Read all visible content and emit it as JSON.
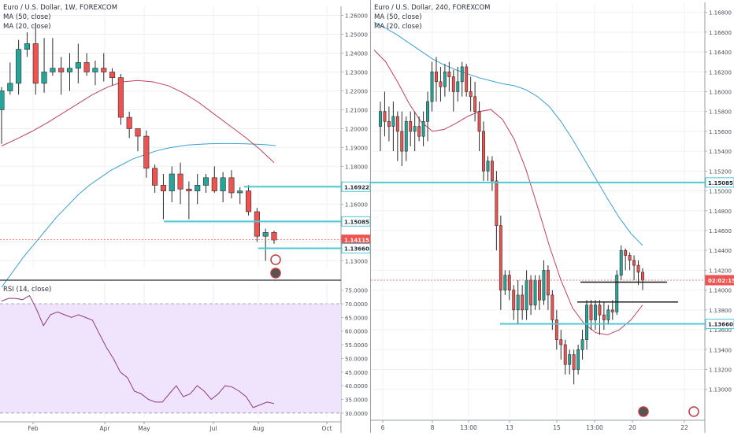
{
  "left_chart": {
    "title": "Euro / U.S. Dollar, 1W, FOREXCOM",
    "ma1_label": "MA (50, close)",
    "ma2_label": "MA (20, close)",
    "rsi_label": "RSI (14, close)"
  },
  "right_chart": {
    "title": "Euro / U.S. Dollar, 240, FOREXCOM",
    "ma1_label": "MA (50, close)",
    "ma2_label": "MA (20, close)"
  },
  "colors": {
    "up": "#26a69a",
    "down": "#ef5350",
    "ma50": "#3aa0d5",
    "ma20": "#c2405a",
    "level": "#4dc8d4",
    "rsi_line": "#8e3a84",
    "rsi_band": "#efe4fb",
    "price_tag": "#ef5350"
  },
  "chart_data": [
    {
      "type": "candlestick",
      "id": "left-weekly",
      "title": "Euro / U.S. Dollar, 1W, FOREXCOM",
      "ylim": [
        1.1264,
        1.2648
      ],
      "y_ticks": [
        "1.26000",
        "1.25000",
        "1.24000",
        "1.23000",
        "1.22000",
        "1.21000",
        "1.20000",
        "1.19000",
        "1.18000",
        "1.17000",
        "1.16000",
        "1.15000",
        "1.14000",
        "1.13000"
      ],
      "x_ticks": [
        "Feb",
        "Apr",
        "May",
        "Jul",
        "Aug",
        "Oct"
      ],
      "price_labels": [
        {
          "text": "1.16922",
          "value": 1.16922,
          "style": "level"
        },
        {
          "text": "1.15085",
          "value": 1.15085,
          "style": "level"
        },
        {
          "text": "1.14115",
          "value": 1.14115,
          "style": "current"
        },
        {
          "text": "1.13660",
          "value": 1.1366,
          "style": "level"
        }
      ],
      "candles": [
        {
          "o": 1.21,
          "h": 1.222,
          "l": 1.192,
          "c": 1.22
        },
        {
          "o": 1.22,
          "h": 1.235,
          "l": 1.218,
          "c": 1.224
        },
        {
          "o": 1.224,
          "h": 1.247,
          "l": 1.218,
          "c": 1.242
        },
        {
          "o": 1.242,
          "h": 1.251,
          "l": 1.238,
          "c": 1.245
        },
        {
          "o": 1.245,
          "h": 1.256,
          "l": 1.218,
          "c": 1.224
        },
        {
          "o": 1.224,
          "h": 1.248,
          "l": 1.219,
          "c": 1.23
        },
        {
          "o": 1.23,
          "h": 1.248,
          "l": 1.228,
          "c": 1.232
        },
        {
          "o": 1.232,
          "h": 1.238,
          "l": 1.218,
          "c": 1.23
        },
        {
          "o": 1.23,
          "h": 1.24,
          "l": 1.22,
          "c": 1.232
        },
        {
          "o": 1.232,
          "h": 1.245,
          "l": 1.224,
          "c": 1.235
        },
        {
          "o": 1.235,
          "h": 1.24,
          "l": 1.228,
          "c": 1.23
        },
        {
          "o": 1.23,
          "h": 1.236,
          "l": 1.223,
          "c": 1.232
        },
        {
          "o": 1.232,
          "h": 1.24,
          "l": 1.225,
          "c": 1.23
        },
        {
          "o": 1.23,
          "h": 1.232,
          "l": 1.223,
          "c": 1.227
        },
        {
          "o": 1.227,
          "h": 1.229,
          "l": 1.202,
          "c": 1.206
        },
        {
          "o": 1.206,
          "h": 1.209,
          "l": 1.195,
          "c": 1.2
        },
        {
          "o": 1.2,
          "h": 1.2,
          "l": 1.188,
          "c": 1.196
        },
        {
          "o": 1.196,
          "h": 1.199,
          "l": 1.174,
          "c": 1.179
        },
        {
          "o": 1.179,
          "h": 1.181,
          "l": 1.166,
          "c": 1.17
        },
        {
          "o": 1.17,
          "h": 1.176,
          "l": 1.152,
          "c": 1.167
        },
        {
          "o": 1.167,
          "h": 1.18,
          "l": 1.161,
          "c": 1.176
        },
        {
          "o": 1.176,
          "h": 1.182,
          "l": 1.16,
          "c": 1.168
        },
        {
          "o": 1.168,
          "h": 1.172,
          "l": 1.152,
          "c": 1.167
        },
        {
          "o": 1.167,
          "h": 1.176,
          "l": 1.16,
          "c": 1.17
        },
        {
          "o": 1.17,
          "h": 1.176,
          "l": 1.166,
          "c": 1.174
        },
        {
          "o": 1.174,
          "h": 1.18,
          "l": 1.166,
          "c": 1.167
        },
        {
          "o": 1.167,
          "h": 1.177,
          "l": 1.161,
          "c": 1.174
        },
        {
          "o": 1.174,
          "h": 1.178,
          "l": 1.163,
          "c": 1.166
        },
        {
          "o": 1.166,
          "h": 1.169,
          "l": 1.16,
          "c": 1.167
        },
        {
          "o": 1.167,
          "h": 1.17,
          "l": 1.154,
          "c": 1.156
        },
        {
          "o": 1.156,
          "h": 1.158,
          "l": 1.14,
          "c": 1.143
        },
        {
          "o": 1.143,
          "h": 1.147,
          "l": 1.13,
          "c": 1.145
        },
        {
          "o": 1.145,
          "h": 1.146,
          "l": 1.139,
          "c": 1.141
        }
      ],
      "ma50": [
        1.116,
        1.124,
        1.132,
        1.139,
        1.146,
        1.153,
        1.159,
        1.165,
        1.17,
        1.174,
        1.178,
        1.181,
        1.184,
        1.186,
        1.188,
        1.1895,
        1.1905,
        1.1913,
        1.1917,
        1.192,
        1.1921,
        1.1921,
        1.192,
        1.1918,
        1.1915,
        1.191
      ],
      "ma20": [
        1.1908,
        1.1945,
        1.1985,
        1.203,
        1.208,
        1.213,
        1.218,
        1.222,
        1.2248,
        1.2255,
        1.2248,
        1.2228,
        1.219,
        1.214,
        1.208,
        1.202,
        1.196,
        1.1895,
        1.182
      ]
    },
    {
      "type": "line",
      "id": "left-rsi",
      "title": "RSI (14, close)",
      "ylim": [
        28.5,
        77.5
      ],
      "y_ticks": [
        "75.0000",
        "70.0000",
        "65.0000",
        "60.0000",
        "55.0000",
        "50.0000",
        "45.0000",
        "40.0000",
        "35.0000",
        "30.0000"
      ],
      "band": [
        30,
        70
      ],
      "values": [
        71,
        72,
        72,
        71.5,
        73,
        68,
        62,
        66,
        67,
        66,
        65,
        66,
        65,
        64,
        59,
        54,
        50,
        45,
        43,
        38,
        37,
        35,
        34,
        34,
        37,
        40,
        36,
        37,
        40,
        38,
        35,
        37,
        40,
        39.5,
        38,
        36,
        32,
        33,
        34,
        33.5
      ]
    },
    {
      "type": "candlestick",
      "id": "right-4h",
      "title": "Euro / U.S. Dollar, 240, FOREXCOM",
      "ylim": [
        1.1272,
        1.169
      ],
      "y_ticks": [
        "1.16800",
        "1.16600",
        "1.16400",
        "1.16200",
        "1.16000",
        "1.15800",
        "1.15600",
        "1.15400",
        "1.15200",
        "1.15000",
        "1.14800",
        "1.14600",
        "1.14400",
        "1.14200",
        "1.14000",
        "1.13800",
        "1.13600",
        "1.13400",
        "1.13200",
        "1.13000"
      ],
      "x_ticks": [
        "6",
        "8",
        "13:00",
        "13",
        "15",
        "13:00",
        "20",
        "22"
      ],
      "price_labels": [
        {
          "text": "1.15085",
          "value": 1.15085,
          "style": "level"
        },
        {
          "text": "02:02:15",
          "value": 1.141,
          "style": "timer"
        },
        {
          "text": "1.13660",
          "value": 1.1366,
          "style": "level"
        }
      ],
      "candles": [
        {
          "o": 1.1565,
          "h": 1.159,
          "l": 1.154,
          "c": 1.158
        },
        {
          "o": 1.158,
          "h": 1.16,
          "l": 1.1555,
          "c": 1.157
        },
        {
          "o": 1.157,
          "h": 1.1585,
          "l": 1.155,
          "c": 1.1565
        },
        {
          "o": 1.1565,
          "h": 1.159,
          "l": 1.154,
          "c": 1.1575
        },
        {
          "o": 1.1575,
          "h": 1.158,
          "l": 1.153,
          "c": 1.156
        },
        {
          "o": 1.156,
          "h": 1.158,
          "l": 1.1525,
          "c": 1.154
        },
        {
          "o": 1.154,
          "h": 1.1575,
          "l": 1.153,
          "c": 1.157
        },
        {
          "o": 1.157,
          "h": 1.158,
          "l": 1.1545,
          "c": 1.156
        },
        {
          "o": 1.156,
          "h": 1.158,
          "l": 1.154,
          "c": 1.1565
        },
        {
          "o": 1.1565,
          "h": 1.1575,
          "l": 1.155,
          "c": 1.1555
        },
        {
          "o": 1.1555,
          "h": 1.158,
          "l": 1.1545,
          "c": 1.157
        },
        {
          "o": 1.157,
          "h": 1.16,
          "l": 1.155,
          "c": 1.159
        },
        {
          "o": 1.159,
          "h": 1.163,
          "l": 1.158,
          "c": 1.162
        },
        {
          "o": 1.162,
          "h": 1.1635,
          "l": 1.159,
          "c": 1.161
        },
        {
          "o": 1.161,
          "h": 1.1625,
          "l": 1.159,
          "c": 1.1605
        },
        {
          "o": 1.1605,
          "h": 1.1628,
          "l": 1.1595,
          "c": 1.162
        },
        {
          "o": 1.162,
          "h": 1.163,
          "l": 1.16,
          "c": 1.1615
        },
        {
          "o": 1.1615,
          "h": 1.1622,
          "l": 1.158,
          "c": 1.16
        },
        {
          "o": 1.16,
          "h": 1.1625,
          "l": 1.159,
          "c": 1.161
        },
        {
          "o": 1.161,
          "h": 1.163,
          "l": 1.1595,
          "c": 1.1625
        },
        {
          "o": 1.1625,
          "h": 1.1628,
          "l": 1.1595,
          "c": 1.16
        },
        {
          "o": 1.16,
          "h": 1.1615,
          "l": 1.158,
          "c": 1.1595
        },
        {
          "o": 1.1595,
          "h": 1.161,
          "l": 1.157,
          "c": 1.158
        },
        {
          "o": 1.158,
          "h": 1.159,
          "l": 1.154,
          "c": 1.156
        },
        {
          "o": 1.156,
          "h": 1.157,
          "l": 1.151,
          "c": 1.152
        },
        {
          "o": 1.152,
          "h": 1.1535,
          "l": 1.151,
          "c": 1.153
        },
        {
          "o": 1.153,
          "h": 1.1535,
          "l": 1.15,
          "c": 1.151
        },
        {
          "o": 1.151,
          "h": 1.152,
          "l": 1.144,
          "c": 1.1465
        },
        {
          "o": 1.1465,
          "h": 1.1475,
          "l": 1.138,
          "c": 1.14
        },
        {
          "o": 1.14,
          "h": 1.142,
          "l": 1.1395,
          "c": 1.1415
        },
        {
          "o": 1.1415,
          "h": 1.142,
          "l": 1.139,
          "c": 1.14
        },
        {
          "o": 1.14,
          "h": 1.1405,
          "l": 1.137,
          "c": 1.138
        },
        {
          "o": 1.138,
          "h": 1.141,
          "l": 1.1365,
          "c": 1.1395
        },
        {
          "o": 1.1395,
          "h": 1.1405,
          "l": 1.137,
          "c": 1.138
        },
        {
          "o": 1.138,
          "h": 1.142,
          "l": 1.137,
          "c": 1.141
        },
        {
          "o": 1.141,
          "h": 1.1415,
          "l": 1.1375,
          "c": 1.1385
        },
        {
          "o": 1.1385,
          "h": 1.1415,
          "l": 1.138,
          "c": 1.141
        },
        {
          "o": 1.141,
          "h": 1.1415,
          "l": 1.138,
          "c": 1.139
        },
        {
          "o": 1.139,
          "h": 1.143,
          "l": 1.1385,
          "c": 1.142
        },
        {
          "o": 1.142,
          "h": 1.1425,
          "l": 1.138,
          "c": 1.1395
        },
        {
          "o": 1.1395,
          "h": 1.14,
          "l": 1.136,
          "c": 1.137
        },
        {
          "o": 1.137,
          "h": 1.138,
          "l": 1.134,
          "c": 1.135
        },
        {
          "o": 1.135,
          "h": 1.136,
          "l": 1.133,
          "c": 1.1345
        },
        {
          "o": 1.1345,
          "h": 1.135,
          "l": 1.1315,
          "c": 1.1325
        },
        {
          "o": 1.1325,
          "h": 1.134,
          "l": 1.1315,
          "c": 1.1335
        },
        {
          "o": 1.1335,
          "h": 1.134,
          "l": 1.1305,
          "c": 1.132
        },
        {
          "o": 1.132,
          "h": 1.1345,
          "l": 1.1315,
          "c": 1.134
        },
        {
          "o": 1.134,
          "h": 1.136,
          "l": 1.133,
          "c": 1.135
        },
        {
          "o": 1.135,
          "h": 1.139,
          "l": 1.134,
          "c": 1.1385
        },
        {
          "o": 1.1385,
          "h": 1.139,
          "l": 1.136,
          "c": 1.137
        },
        {
          "o": 1.137,
          "h": 1.139,
          "l": 1.136,
          "c": 1.1385
        },
        {
          "o": 1.1385,
          "h": 1.139,
          "l": 1.1355,
          "c": 1.1375
        },
        {
          "o": 1.1375,
          "h": 1.1388,
          "l": 1.136,
          "c": 1.137
        },
        {
          "o": 1.137,
          "h": 1.1385,
          "l": 1.1365,
          "c": 1.138
        },
        {
          "o": 1.138,
          "h": 1.139,
          "l": 1.137,
          "c": 1.1378
        },
        {
          "o": 1.1378,
          "h": 1.142,
          "l": 1.1375,
          "c": 1.1415
        },
        {
          "o": 1.1415,
          "h": 1.1445,
          "l": 1.141,
          "c": 1.144
        },
        {
          "o": 1.144,
          "h": 1.1442,
          "l": 1.142,
          "c": 1.1435
        },
        {
          "o": 1.1435,
          "h": 1.1438,
          "l": 1.142,
          "c": 1.143
        },
        {
          "o": 1.143,
          "h": 1.1435,
          "l": 1.141,
          "c": 1.1425
        },
        {
          "o": 1.1425,
          "h": 1.143,
          "l": 1.1405,
          "c": 1.1418
        },
        {
          "o": 1.1418,
          "h": 1.1422,
          "l": 1.14,
          "c": 1.141
        }
      ],
      "ma50": [
        1.167,
        1.1664,
        1.1657,
        1.1649,
        1.1641,
        1.1633,
        1.1627,
        1.1622,
        1.1618,
        1.1614,
        1.1611,
        1.1608,
        1.1606,
        1.1602,
        1.1595,
        1.1585,
        1.157,
        1.1552,
        1.1532,
        1.1512,
        1.1492,
        1.1473,
        1.1457,
        1.1445
      ],
      "ma20": [
        1.1642,
        1.163,
        1.161,
        1.1588,
        1.157,
        1.156,
        1.1562,
        1.1568,
        1.1575,
        1.158,
        1.1582,
        1.1572,
        1.1552,
        1.1522,
        1.1484,
        1.1445,
        1.141,
        1.1382,
        1.1366,
        1.1357,
        1.1355,
        1.136,
        1.137,
        1.1385
      ]
    }
  ]
}
